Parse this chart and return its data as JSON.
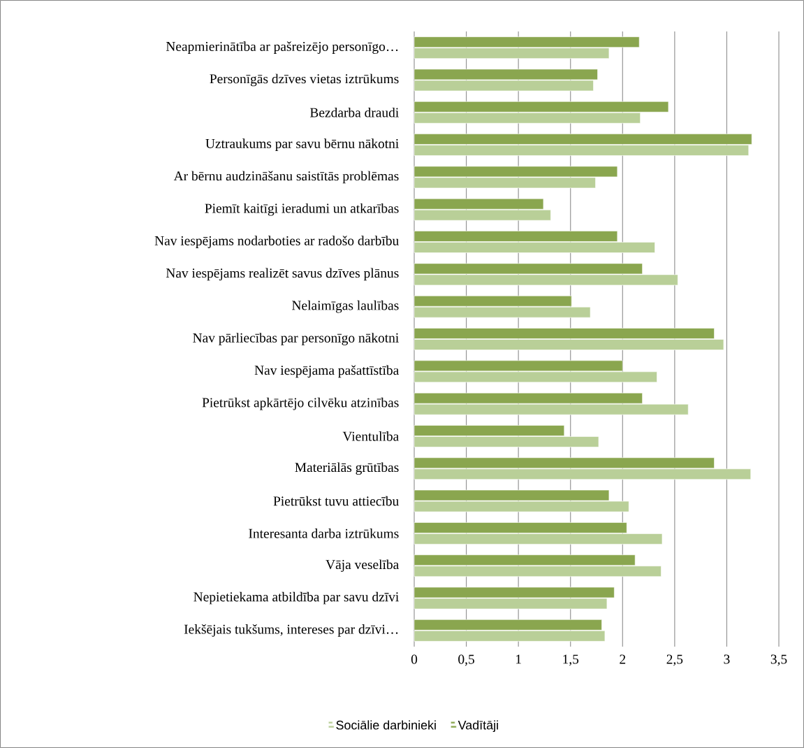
{
  "chart_data": {
    "type": "bar",
    "orientation": "horizontal",
    "categories": [
      "Neapmierinātība ar pašreizējo personīgo…",
      "Personīgās dzīves vietas iztrūkums",
      "Bezdarba draudi",
      "Uztraukums par savu bērnu nākotni",
      "Ar bērnu audzināšanu saistītās problēmas",
      "Piemīt kaitīgi ieradumi un atkarības",
      "Nav iespējams nodarboties ar radošo darbību",
      "Nav iespējams realizēt savus dzīves plānus",
      "Nelaimīgas laulības",
      "Nav pārliecības par personīgo nākotni",
      "Nav iespējama pašattīstība",
      "Pietrūkst apkārtējo cilvēku atzinības",
      "Vientulība",
      "Materiālās grūtības",
      "Pietrūkst tuvu attiecību",
      "Interesanta darba iztrūkums",
      "Vāja veselība",
      "Nepietiekama atbildība par savu dzīvi",
      "Iekšējais tukšums, intereses par dzīvi…"
    ],
    "series": [
      {
        "name": "Sociālie darbinieki",
        "color": "#b9cf98",
        "values": [
          1.87,
          1.72,
          2.17,
          3.21,
          1.74,
          1.31,
          2.31,
          2.53,
          1.69,
          2.97,
          2.33,
          2.63,
          1.77,
          3.23,
          2.06,
          2.38,
          2.37,
          1.85,
          1.83
        ]
      },
      {
        "name": "Vadītāji",
        "color": "#8aa64f",
        "values": [
          2.16,
          1.76,
          2.44,
          3.24,
          1.95,
          1.24,
          1.95,
          2.19,
          1.51,
          2.88,
          2.0,
          2.19,
          1.44,
          2.88,
          1.87,
          2.04,
          2.12,
          1.92,
          1.8
        ]
      }
    ],
    "xlim": [
      0,
      3.5
    ],
    "xticks": [
      0,
      {
        "value": 0.5,
        "label": "0,5"
      },
      1,
      {
        "value": 1.5,
        "label": "1,5"
      },
      2,
      {
        "value": 2.5,
        "label": "2,5"
      },
      3,
      {
        "value": 3.5,
        "label": "3,5"
      }
    ],
    "grid": "x",
    "legend": "bottom"
  }
}
